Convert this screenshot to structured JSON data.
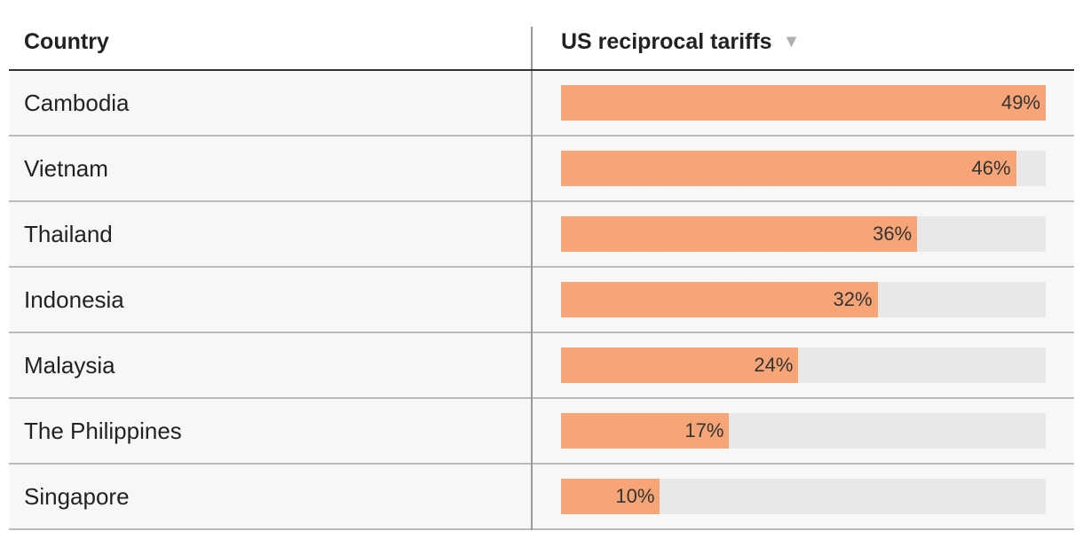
{
  "header": {
    "country": "Country",
    "tariffs": "US reciprocal tariffs",
    "sort_indicator": "▼"
  },
  "colors": {
    "bar": "#f7a577",
    "track": "#e8e8e8",
    "row_bg": "#f7f7f7"
  },
  "chart_data": {
    "type": "bar",
    "orientation": "horizontal",
    "categories": [
      "Cambodia",
      "Vietnam",
      "Thailand",
      "Indonesia",
      "Malaysia",
      "The Philippines",
      "Singapore"
    ],
    "values": [
      49,
      46,
      36,
      32,
      24,
      17,
      10
    ],
    "labels": [
      "49%",
      "46%",
      "36%",
      "32%",
      "24%",
      "17%",
      "10%"
    ],
    "xlim": [
      0,
      49
    ],
    "sorted": "descending"
  }
}
